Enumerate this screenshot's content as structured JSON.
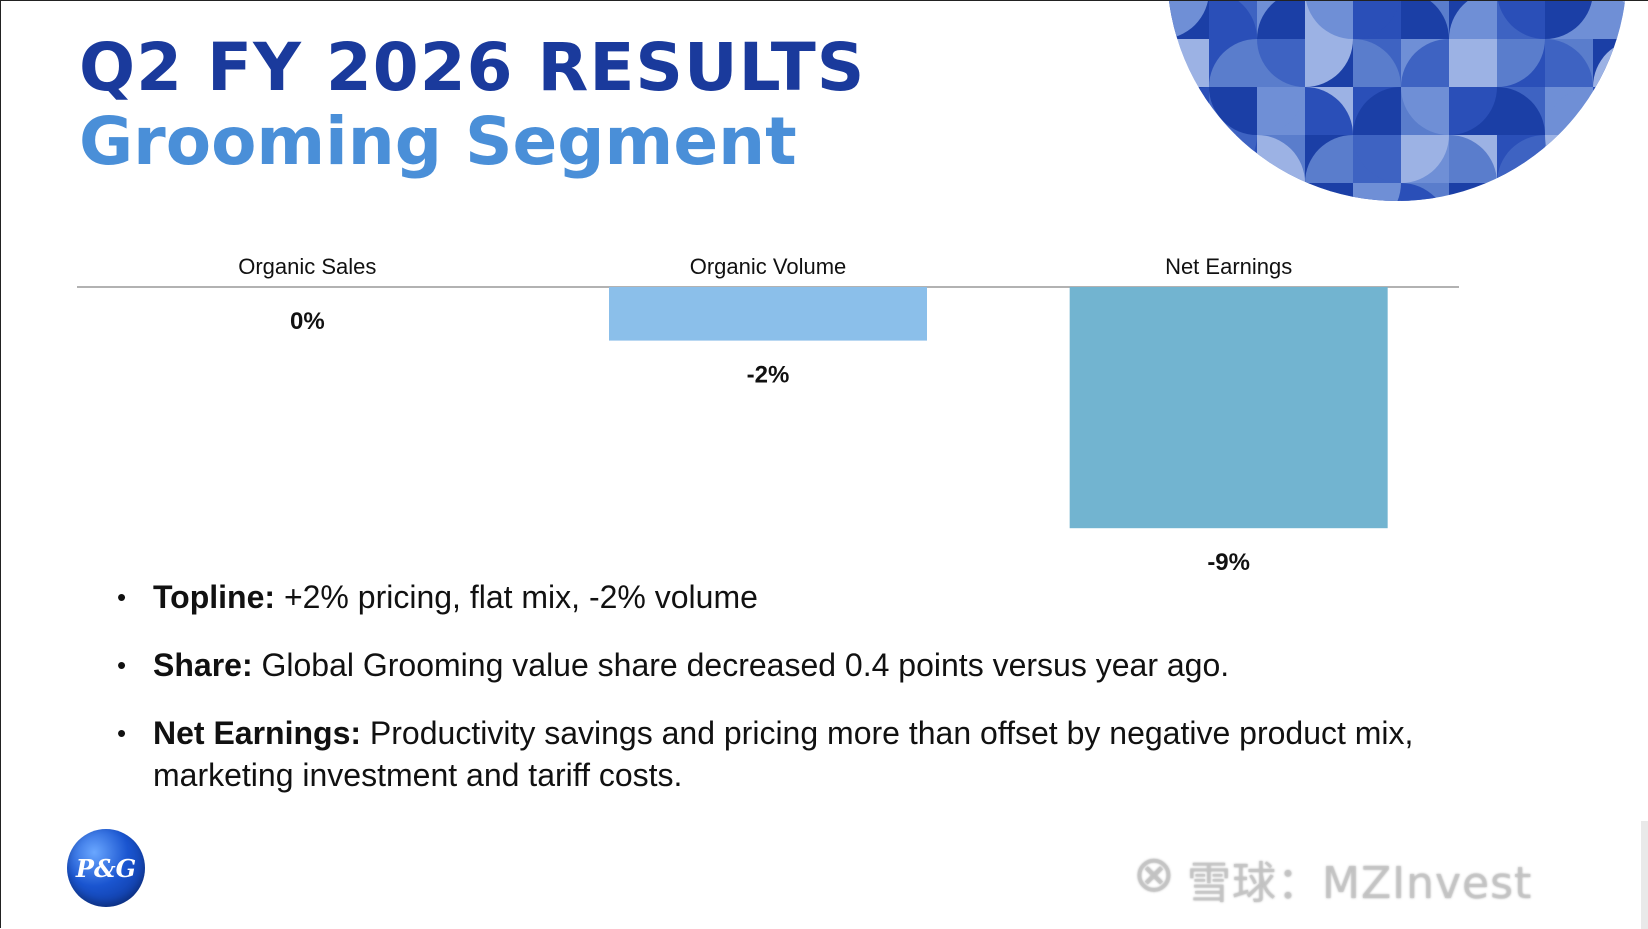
{
  "title": {
    "line1": "Q2 FY 2026 RESULTS",
    "line2": "Grooming Segment"
  },
  "colors": {
    "title_dark": "#1a3a9c",
    "title_light": "#4a8fd8",
    "bar_volume": "#8bbfea",
    "bar_earnings": "#72b4d0",
    "baseline": "#999999"
  },
  "chart_data": {
    "type": "bar",
    "categories": [
      "Organic Sales",
      "Organic Volume",
      "Net Earnings"
    ],
    "values": [
      0,
      -2,
      -9
    ],
    "value_labels": [
      "0%",
      "-2%",
      "-9%"
    ],
    "title": "",
    "xlabel": "",
    "ylabel": "",
    "ylim": [
      -10,
      0
    ],
    "grid": false,
    "colors": [
      "#8bbfea",
      "#8bbfea",
      "#72b4d0"
    ]
  },
  "bullets": [
    {
      "label": "Topline:",
      "text": " +2% pricing, flat mix, -2% volume"
    },
    {
      "label": "Share:",
      "text": " Global Grooming value share decreased 0.4 points versus year ago."
    },
    {
      "label": "Net Earnings:",
      "text": " Productivity savings and pricing more than offset by negative product mix, marketing investment and tariff costs."
    }
  ],
  "logo": {
    "text": "P&G"
  },
  "watermark": {
    "icon": "⊗",
    "text": "雪球：MZInvest"
  }
}
